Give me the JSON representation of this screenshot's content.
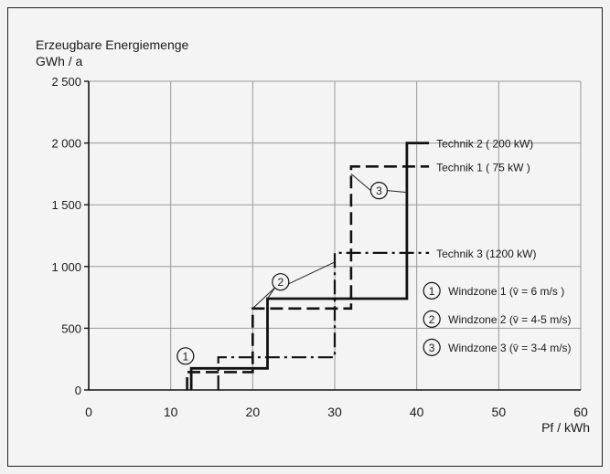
{
  "chart_data": {
    "type": "line",
    "step": true,
    "ylabel_line1": "Erzeugbare Energiemenge",
    "ylabel_line2": "GWh / a",
    "xlabel": "Pf / kWh",
    "xlim": [
      0,
      60
    ],
    "ylim": [
      0,
      2500
    ],
    "xticks": [
      0,
      10,
      20,
      30,
      40,
      50,
      60
    ],
    "yticks": [
      0,
      500,
      1000,
      1500,
      2000,
      2500
    ],
    "ytick_labels": [
      "0",
      "500",
      "1 000",
      "1 500",
      "2 000",
      "2 500"
    ],
    "grid": true,
    "series": [
      {
        "name": "Technik 2 ( 200 kW)",
        "style": "solid",
        "points": [
          [
            12.5,
            0
          ],
          [
            12.5,
            175
          ],
          [
            21.8,
            175
          ],
          [
            21.8,
            740
          ],
          [
            38.8,
            740
          ],
          [
            38.8,
            2000
          ],
          [
            41.5,
            2000
          ]
        ]
      },
      {
        "name": "Technik 1 ( 75 kW )",
        "style": "dashed",
        "points": [
          [
            12,
            0
          ],
          [
            12,
            145
          ],
          [
            20,
            145
          ],
          [
            20,
            660
          ],
          [
            32,
            660
          ],
          [
            32,
            1810
          ],
          [
            41.5,
            1810
          ]
        ]
      },
      {
        "name": "Technik 3 (1200 kW)",
        "style": "dashdot",
        "points": [
          [
            15.8,
            0
          ],
          [
            15.8,
            265
          ],
          [
            30,
            265
          ],
          [
            30,
            1110
          ],
          [
            41.5,
            1110
          ]
        ]
      }
    ],
    "windzone_legend": [
      {
        "marker": "1",
        "label": "Windzone 1 (v̄ = 6 m/s )"
      },
      {
        "marker": "2",
        "label": "Windzone 2 (v̄ = 4-5 m/s)"
      },
      {
        "marker": "3",
        "label": "Windzone 3 (v̄ = 3-4 m/s)"
      }
    ],
    "annotations": [
      {
        "marker": "1",
        "x": 11.8,
        "y": 275
      },
      {
        "marker": "2",
        "x": 23.4,
        "y": 875
      },
      {
        "marker": "3",
        "x": 35.4,
        "y": 1615
      }
    ]
  }
}
